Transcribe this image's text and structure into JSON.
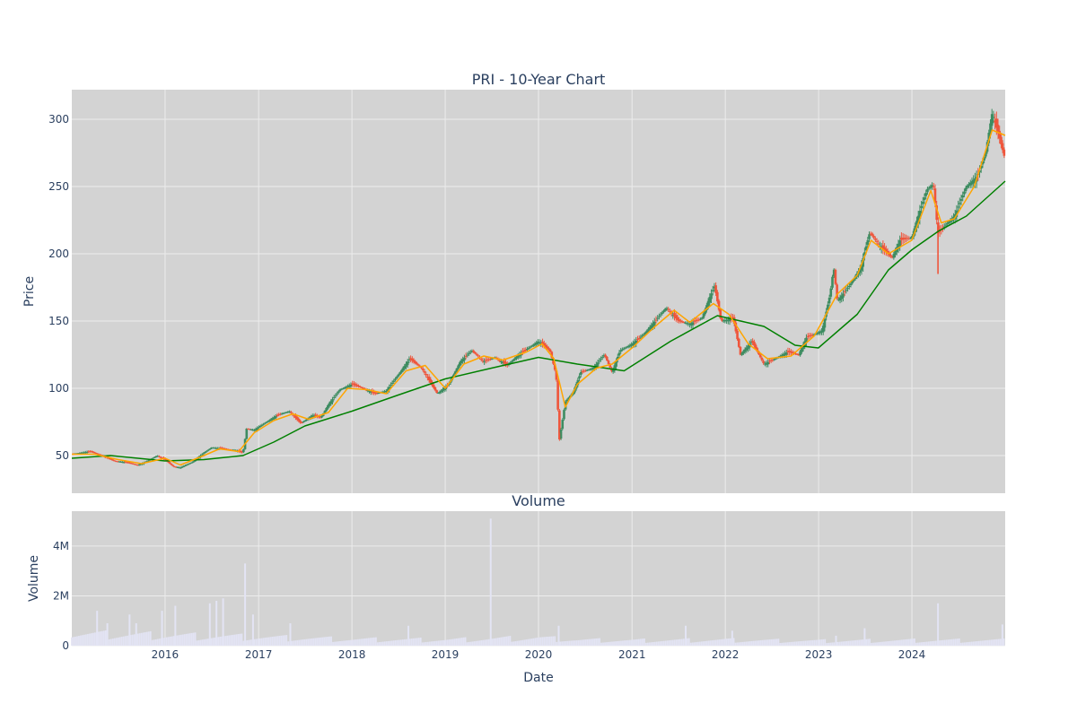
{
  "colors": {
    "plot_bg": "#d3d3d3",
    "grid": "#ececec",
    "text": "#2a3f5f",
    "up": "#3d8c61",
    "down": "#ef553b",
    "ma_fast": "#ffa500",
    "ma_slow": "#008000",
    "volume": "#e3e4f4"
  },
  "chart_data": [
    {
      "type": "candlestick",
      "title": "PRI - 10-Year Chart",
      "ylabel": "Price",
      "xlim": [
        "2015-01-01",
        "2024-12-31"
      ],
      "ylim": [
        22,
        322
      ],
      "yticks": [
        50,
        100,
        150,
        200,
        250,
        300
      ],
      "xticks": [
        {
          "date": "2016-01-01",
          "label": "2016"
        },
        {
          "date": "2017-01-01",
          "label": "2017"
        },
        {
          "date": "2018-01-01",
          "label": "2018"
        },
        {
          "date": "2019-01-01",
          "label": "2019"
        },
        {
          "date": "2020-01-01",
          "label": "2020"
        },
        {
          "date": "2021-01-01",
          "label": "2021"
        },
        {
          "date": "2022-01-01",
          "label": "2022"
        },
        {
          "date": "2023-01-01",
          "label": "2023"
        },
        {
          "date": "2024-01-01",
          "label": "2024"
        }
      ],
      "grid": true,
      "price_close": [
        [
          "2015-01-01",
          51
        ],
        [
          "2015-02-01",
          52
        ],
        [
          "2015-03-15",
          53
        ],
        [
          "2015-05-01",
          50
        ],
        [
          "2015-06-15",
          46
        ],
        [
          "2015-08-01",
          45
        ],
        [
          "2015-09-15",
          43
        ],
        [
          "2015-10-15",
          45
        ],
        [
          "2015-12-01",
          50
        ],
        [
          "2016-01-01",
          47
        ],
        [
          "2016-02-01",
          42
        ],
        [
          "2016-03-01",
          41
        ],
        [
          "2016-04-15",
          45
        ],
        [
          "2016-06-01",
          52
        ],
        [
          "2016-07-01",
          56
        ],
        [
          "2016-08-15",
          55
        ],
        [
          "2016-10-01",
          54
        ],
        [
          "2016-11-01",
          52
        ],
        [
          "2016-11-15",
          70
        ],
        [
          "2016-12-15",
          69
        ],
        [
          "2017-02-01",
          75
        ],
        [
          "2017-03-15",
          80
        ],
        [
          "2017-05-01",
          83
        ],
        [
          "2017-06-15",
          74
        ],
        [
          "2017-08-01",
          80
        ],
        [
          "2017-09-01",
          78
        ],
        [
          "2017-10-01",
          88
        ],
        [
          "2017-11-15",
          99
        ],
        [
          "2018-01-01",
          103
        ],
        [
          "2018-02-15",
          100
        ],
        [
          "2018-04-01",
          96
        ],
        [
          "2018-05-15",
          98
        ],
        [
          "2018-07-01",
          110
        ],
        [
          "2018-08-15",
          122
        ],
        [
          "2018-10-01",
          115
        ],
        [
          "2018-12-01",
          96
        ],
        [
          "2019-01-15",
          103
        ],
        [
          "2019-03-01",
          120
        ],
        [
          "2019-04-15",
          128
        ],
        [
          "2019-06-01",
          120
        ],
        [
          "2019-07-15",
          123
        ],
        [
          "2019-09-01",
          117
        ],
        [
          "2019-10-15",
          125
        ],
        [
          "2019-12-01",
          131
        ],
        [
          "2020-01-01",
          135
        ],
        [
          "2020-02-15",
          128
        ],
        [
          "2020-03-10",
          110
        ],
        [
          "2020-03-23",
          62
        ],
        [
          "2020-04-15",
          90
        ],
        [
          "2020-05-15",
          97
        ],
        [
          "2020-06-15",
          112
        ],
        [
          "2020-08-01",
          115
        ],
        [
          "2020-09-15",
          125
        ],
        [
          "2020-10-15",
          112
        ],
        [
          "2020-11-15",
          128
        ],
        [
          "2021-01-01",
          133
        ],
        [
          "2021-02-15",
          140
        ],
        [
          "2021-04-01",
          150
        ],
        [
          "2021-05-15",
          160
        ],
        [
          "2021-07-01",
          150
        ],
        [
          "2021-08-15",
          148
        ],
        [
          "2021-10-01",
          152
        ],
        [
          "2021-11-01",
          168
        ],
        [
          "2021-11-20",
          176
        ],
        [
          "2021-12-15",
          150
        ],
        [
          "2022-02-01",
          152
        ],
        [
          "2022-03-01",
          125
        ],
        [
          "2022-04-15",
          135
        ],
        [
          "2022-06-01",
          118
        ],
        [
          "2022-07-15",
          122
        ],
        [
          "2022-09-01",
          127
        ],
        [
          "2022-10-15",
          125
        ],
        [
          "2022-11-15",
          138
        ],
        [
          "2022-12-15",
          140
        ],
        [
          "2023-01-15",
          143
        ],
        [
          "2023-02-15",
          170
        ],
        [
          "2023-03-01",
          190
        ],
        [
          "2023-03-15",
          165
        ],
        [
          "2023-05-01",
          176
        ],
        [
          "2023-06-15",
          190
        ],
        [
          "2023-07-20",
          216
        ],
        [
          "2023-09-01",
          205
        ],
        [
          "2023-10-15",
          197
        ],
        [
          "2023-11-15",
          210
        ],
        [
          "2023-12-31",
          212
        ],
        [
          "2024-02-01",
          232
        ],
        [
          "2024-03-01",
          248
        ],
        [
          "2024-03-25",
          252
        ],
        [
          "2024-04-12",
          215
        ],
        [
          "2024-05-15",
          222
        ],
        [
          "2024-06-15",
          228
        ],
        [
          "2024-08-01",
          250
        ],
        [
          "2024-09-15",
          258
        ],
        [
          "2024-10-15",
          275
        ],
        [
          "2024-11-10",
          305
        ],
        [
          "2024-12-10",
          285
        ],
        [
          "2024-12-31",
          270
        ]
      ],
      "price_low_spikes": [
        [
          "2020-03-23",
          62
        ],
        [
          "2024-04-12",
          185
        ]
      ],
      "ma_fast": [
        [
          "2015-01-01",
          51
        ],
        [
          "2015-04-01",
          51
        ],
        [
          "2015-07-01",
          47
        ],
        [
          "2015-10-01",
          44
        ],
        [
          "2016-01-01",
          48
        ],
        [
          "2016-03-01",
          43
        ],
        [
          "2016-06-01",
          50
        ],
        [
          "2016-08-01",
          55
        ],
        [
          "2016-10-15",
          53
        ],
        [
          "2016-12-15",
          67
        ],
        [
          "2017-03-01",
          76
        ],
        [
          "2017-05-15",
          81
        ],
        [
          "2017-07-15",
          77
        ],
        [
          "2017-10-01",
          82
        ],
        [
          "2017-12-15",
          100
        ],
        [
          "2018-03-01",
          99
        ],
        [
          "2018-05-15",
          96
        ],
        [
          "2018-08-01",
          113
        ],
        [
          "2018-10-15",
          117
        ],
        [
          "2019-01-01",
          100
        ],
        [
          "2019-03-15",
          118
        ],
        [
          "2019-06-01",
          124
        ],
        [
          "2019-08-15",
          121
        ],
        [
          "2019-11-15",
          127
        ],
        [
          "2020-01-15",
          133
        ],
        [
          "2020-03-01",
          122
        ],
        [
          "2020-04-15",
          86
        ],
        [
          "2020-06-01",
          103
        ],
        [
          "2020-08-15",
          115
        ],
        [
          "2020-10-15",
          118
        ],
        [
          "2021-01-01",
          130
        ],
        [
          "2021-04-01",
          146
        ],
        [
          "2021-06-15",
          158
        ],
        [
          "2021-08-15",
          149
        ],
        [
          "2021-11-15",
          163
        ],
        [
          "2022-01-15",
          155
        ],
        [
          "2022-04-01",
          133
        ],
        [
          "2022-06-15",
          122
        ],
        [
          "2022-09-15",
          124
        ],
        [
          "2022-12-15",
          139
        ],
        [
          "2023-03-15",
          170
        ],
        [
          "2023-06-01",
          184
        ],
        [
          "2023-07-25",
          210
        ],
        [
          "2023-10-01",
          200
        ],
        [
          "2023-12-31",
          210
        ],
        [
          "2024-03-15",
          247
        ],
        [
          "2024-04-25",
          223
        ],
        [
          "2024-06-15",
          226
        ],
        [
          "2024-09-01",
          250
        ],
        [
          "2024-11-10",
          292
        ],
        [
          "2024-12-31",
          288
        ]
      ],
      "ma_slow": [
        [
          "2015-01-01",
          48
        ],
        [
          "2015-06-01",
          50
        ],
        [
          "2016-01-01",
          46
        ],
        [
          "2016-06-01",
          47
        ],
        [
          "2016-11-01",
          50
        ],
        [
          "2017-03-01",
          60
        ],
        [
          "2017-07-01",
          72
        ],
        [
          "2018-01-01",
          83
        ],
        [
          "2018-07-01",
          95
        ],
        [
          "2019-01-01",
          107
        ],
        [
          "2019-07-01",
          115
        ],
        [
          "2020-01-01",
          123
        ],
        [
          "2020-06-01",
          118
        ],
        [
          "2020-12-01",
          113
        ],
        [
          "2021-06-01",
          135
        ],
        [
          "2021-12-01",
          154
        ],
        [
          "2022-06-01",
          146
        ],
        [
          "2022-10-01",
          132
        ],
        [
          "2022-12-31",
          130
        ],
        [
          "2023-06-01",
          155
        ],
        [
          "2023-10-01",
          188
        ],
        [
          "2024-01-01",
          203
        ],
        [
          "2024-04-15",
          217
        ],
        [
          "2024-08-01",
          228
        ],
        [
          "2024-12-31",
          254
        ]
      ]
    },
    {
      "type": "bar",
      "title": "Volume",
      "xlabel": "Date",
      "ylabel": "Volume",
      "ylim": [
        0,
        5400000
      ],
      "yticks": [
        {
          "value": 0,
          "label": "0"
        },
        {
          "value": 2000000,
          "label": "2M"
        },
        {
          "value": 4000000,
          "label": "4M"
        }
      ],
      "grid": true,
      "baseline_volume": [
        [
          "2015-01-01",
          450000
        ],
        [
          "2016-01-01",
          400000
        ],
        [
          "2017-01-01",
          320000
        ],
        [
          "2018-01-01",
          240000
        ],
        [
          "2019-01-01",
          220000
        ],
        [
          "2020-01-01",
          300000
        ],
        [
          "2020-06-01",
          220000
        ],
        [
          "2021-01-01",
          200000
        ],
        [
          "2022-01-01",
          220000
        ],
        [
          "2023-01-01",
          180000
        ],
        [
          "2024-01-01",
          200000
        ],
        [
          "2024-12-31",
          200000
        ]
      ],
      "volume_spikes": [
        [
          "2015-04-10",
          1400000
        ],
        [
          "2015-05-20",
          900000
        ],
        [
          "2015-08-15",
          1250000
        ],
        [
          "2015-09-10",
          900000
        ],
        [
          "2015-12-20",
          1400000
        ],
        [
          "2016-02-10",
          1600000
        ],
        [
          "2016-06-24",
          1700000
        ],
        [
          "2016-07-20",
          1800000
        ],
        [
          "2016-08-15",
          1900000
        ],
        [
          "2016-11-09",
          3300000
        ],
        [
          "2016-12-10",
          1250000
        ],
        [
          "2017-05-05",
          900000
        ],
        [
          "2018-08-10",
          800000
        ],
        [
          "2019-06-28",
          5100000
        ],
        [
          "2020-03-20",
          800000
        ],
        [
          "2021-07-30",
          800000
        ],
        [
          "2022-01-28",
          600000
        ],
        [
          "2023-03-10",
          400000
        ],
        [
          "2023-06-30",
          700000
        ],
        [
          "2024-04-12",
          1700000
        ],
        [
          "2024-12-20",
          850000
        ]
      ]
    }
  ]
}
